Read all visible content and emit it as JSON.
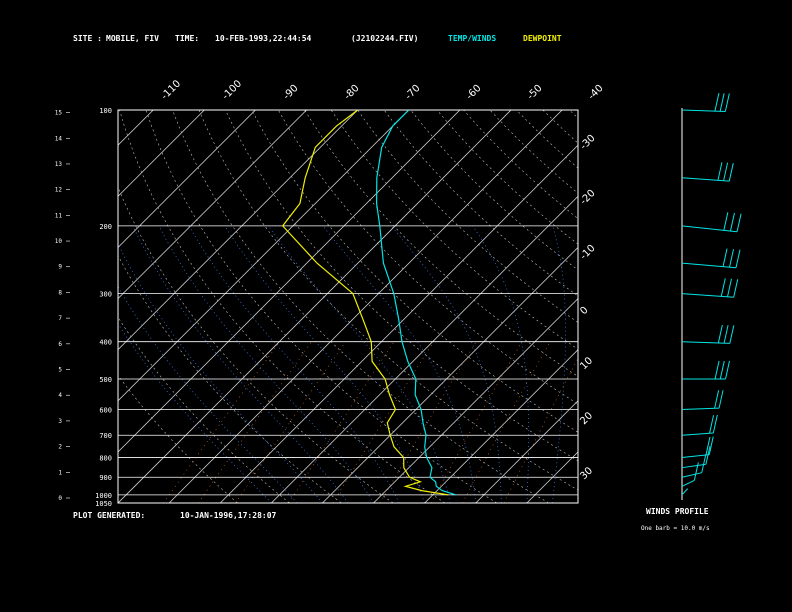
{
  "header": {
    "site_label": "SITE :",
    "site": "MOBILE, FIV",
    "time_label": "TIME:",
    "time": "10-FEB-1993,22:44:54",
    "file": "(J2102244.FIV)",
    "temp_legend": "TEMP/WINDS",
    "dew_legend": "DEWPOINT",
    "generated_label": "PLOT GENERATED:",
    "generated": "10-JAN-1996,17:28:07"
  },
  "wind_panel": {
    "title": "WINDS PROFILE",
    "scale_note": "One barb = 10.0 m/s"
  },
  "colors": {
    "background": "#000000",
    "frame": "#ffffff",
    "temperature": "#00e5e5",
    "dewpoint": "#f0f000",
    "mixing_ratio": "#e07020",
    "moist_adiabat": "#4080ff",
    "dry_adiabat": "#c0c0c0"
  },
  "chart_data": {
    "type": "line",
    "pressure_ticks": [
      "100",
      "200",
      "300",
      "400",
      "500",
      "600",
      "700",
      "800",
      "900",
      "1000",
      "1050"
    ],
    "height_ticks": [
      "0",
      "1",
      "2",
      "3",
      "4",
      "5",
      "6",
      "7",
      "8",
      "9",
      "10",
      "11",
      "12",
      "13",
      "14",
      "15"
    ],
    "skew_temperature_labels_top": [
      "-110",
      "-100",
      "-90",
      "-80",
      "-70",
      "-60",
      "-50",
      "-40"
    ],
    "skew_temperature_labels_right": [
      "-30",
      "-20",
      "-10",
      "0",
      "10",
      "20",
      "30"
    ],
    "ylim": [
      1050,
      100
    ],
    "y_scale": "log-pressure",
    "series": [
      {
        "name": "TEMP/WINDS",
        "pressure": [
          1000,
          975,
          950,
          925,
          900,
          850,
          800,
          750,
          700,
          650,
          600,
          550,
          500,
          450,
          400,
          350,
          300,
          250,
          200,
          175,
          150,
          125,
          110,
          100
        ],
        "values": [
          14.5,
          11,
          9,
          8,
          6,
          4.5,
          1.5,
          -1,
          -3,
          -6,
          -9,
          -13,
          -16,
          -21,
          -26,
          -31,
          -37,
          -45,
          -53,
          -58,
          -63,
          -68,
          -70,
          -70
        ]
      },
      {
        "name": "DEWPOINT",
        "pressure": [
          1000,
          975,
          950,
          925,
          900,
          850,
          800,
          750,
          700,
          650,
          600,
          550,
          500,
          450,
          400,
          350,
          300,
          250,
          200,
          175,
          150,
          125,
          110,
          100
        ],
        "values": [
          13,
          7,
          3,
          5,
          2,
          -1,
          -3,
          -7,
          -10,
          -13,
          -14,
          -18,
          -22,
          -28,
          -32,
          -38,
          -45,
          -58,
          -72,
          -73,
          -77,
          -81,
          -81,
          -80
        ]
      }
    ],
    "winds": [
      {
        "pressure": 1000,
        "dir": 200,
        "speed": 5
      },
      {
        "pressure": 950,
        "dir": 220,
        "speed": 8
      },
      {
        "pressure": 900,
        "dir": 240,
        "speed": 12
      },
      {
        "pressure": 850,
        "dir": 250,
        "speed": 15
      },
      {
        "pressure": 800,
        "dir": 255,
        "speed": 18
      },
      {
        "pressure": 700,
        "dir": 260,
        "speed": 22
      },
      {
        "pressure": 600,
        "dir": 265,
        "speed": 28
      },
      {
        "pressure": 500,
        "dir": 270,
        "speed": 35
      },
      {
        "pressure": 400,
        "dir": 275,
        "speed": 40
      },
      {
        "pressure": 300,
        "dir": 280,
        "speed": 45
      },
      {
        "pressure": 250,
        "dir": 282,
        "speed": 48
      },
      {
        "pressure": 200,
        "dir": 285,
        "speed": 50
      },
      {
        "pressure": 150,
        "dir": 280,
        "speed": 40
      },
      {
        "pressure": 100,
        "dir": 275,
        "speed": 35
      }
    ]
  }
}
